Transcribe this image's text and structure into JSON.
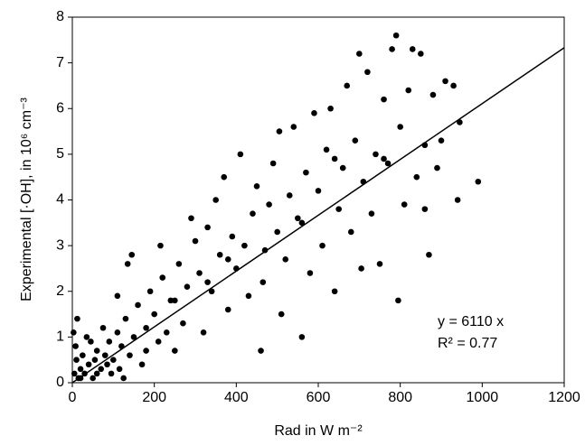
{
  "chart_data": {
    "type": "scatter",
    "xlabel": "Rad in W m⁻²",
    "ylabel": "Experimental [·OH], in 10⁶ cm⁻³",
    "annotations": [
      "y = 6110 x",
      "R² = 0.77"
    ],
    "xlim": [
      0,
      1200
    ],
    "xticks": [
      0,
      200,
      400,
      600,
      800,
      1000,
      1200
    ],
    "ylim": [
      0,
      8
    ],
    "yticks": [
      0,
      1,
      2,
      3,
      4,
      5,
      6,
      7,
      8
    ],
    "series": [
      {
        "mode": "markers",
        "color": "#000000",
        "x": [
          5,
          10,
          15,
          20,
          8,
          25,
          30,
          12,
          3,
          40,
          45,
          50,
          55,
          60,
          35,
          70,
          75,
          80,
          90,
          95,
          100,
          110,
          115,
          120,
          130,
          140,
          150,
          145,
          135,
          110,
          160,
          170,
          180,
          190,
          200,
          210,
          215,
          220,
          240,
          250,
          260,
          270,
          280,
          300,
          290,
          310,
          320,
          330,
          340,
          350,
          360,
          370,
          380,
          390,
          400,
          410,
          420,
          430,
          440,
          450,
          460,
          465,
          480,
          490,
          500,
          505,
          510,
          520,
          530,
          540,
          550,
          560,
          570,
          580,
          590,
          600,
          610,
          620,
          630,
          640,
          650,
          660,
          670,
          680,
          690,
          700,
          705,
          710,
          720,
          730,
          740,
          750,
          760,
          770,
          780,
          790,
          795,
          800,
          810,
          820,
          830,
          840,
          850,
          860,
          870,
          880,
          890,
          900,
          910,
          930,
          940,
          945,
          990,
          860,
          760,
          640,
          560,
          470,
          380,
          330,
          250,
          230,
          180,
          60,
          20,
          85,
          125
        ],
        "values": [
          0.2,
          0.5,
          0.1,
          0.3,
          0.8,
          0.6,
          0.2,
          1.4,
          1.1,
          0.4,
          0.9,
          0.1,
          0.5,
          0.7,
          1.0,
          0.3,
          1.2,
          0.6,
          0.9,
          0.2,
          0.5,
          1.1,
          0.3,
          0.8,
          1.4,
          0.6,
          1.0,
          2.8,
          2.6,
          1.9,
          1.7,
          0.4,
          1.2,
          2.0,
          1.5,
          0.9,
          3.0,
          2.3,
          1.8,
          0.7,
          2.6,
          1.3,
          2.1,
          3.1,
          3.6,
          2.4,
          1.1,
          3.4,
          2.0,
          4.0,
          2.8,
          4.5,
          1.6,
          3.2,
          2.5,
          5.0,
          3.0,
          1.9,
          3.7,
          4.3,
          0.7,
          2.2,
          3.9,
          4.8,
          3.3,
          5.5,
          1.5,
          2.7,
          4.1,
          5.6,
          3.6,
          1.0,
          4.6,
          2.4,
          5.9,
          4.2,
          3.0,
          5.1,
          6.0,
          2.0,
          3.8,
          4.7,
          6.5,
          3.3,
          5.3,
          7.2,
          2.5,
          4.4,
          6.8,
          3.7,
          5.0,
          2.6,
          6.2,
          4.8,
          7.3,
          7.6,
          1.8,
          5.6,
          3.9,
          6.4,
          7.3,
          4.5,
          7.2,
          5.2,
          2.8,
          6.3,
          4.7,
          5.3,
          6.6,
          6.5,
          4.0,
          5.7,
          4.4,
          3.8,
          4.9,
          4.9,
          3.5,
          2.9,
          2.7,
          2.2,
          1.8,
          1.1,
          0.7,
          0.2,
          0.1,
          0.4,
          0.1
        ]
      },
      {
        "mode": "line",
        "color": "#000000",
        "x": [
          0,
          1200
        ],
        "values": [
          0,
          7.33
        ]
      }
    ]
  }
}
